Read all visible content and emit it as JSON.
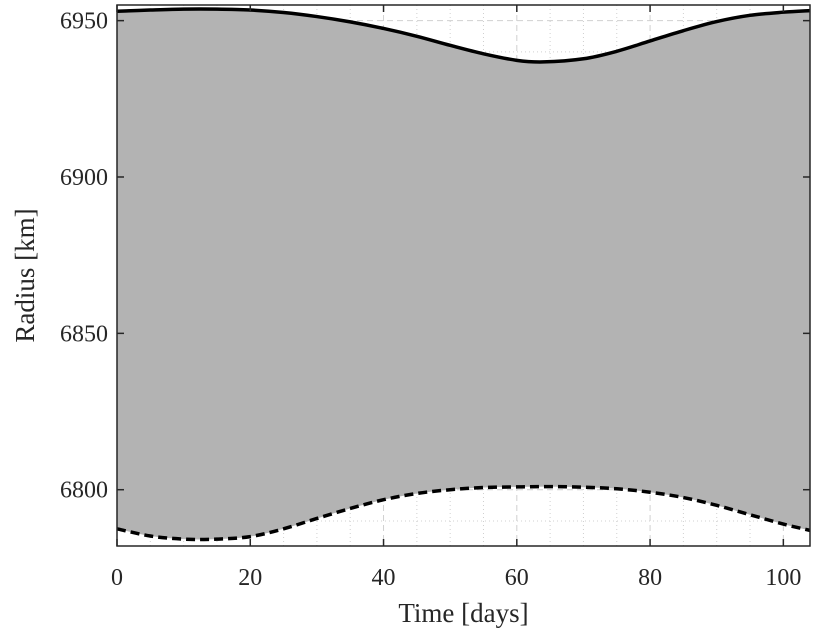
{
  "chart_data": {
    "type": "area",
    "title": "",
    "xlabel": "Time [days]",
    "ylabel": "Radius [km]",
    "xlim": [
      0,
      104
    ],
    "ylim": [
      6782,
      6955
    ],
    "xticks": [
      0,
      20,
      40,
      60,
      80,
      100
    ],
    "yticks": [
      6800,
      6850,
      6900,
      6950
    ],
    "grid": "dotted major and minor",
    "fill_color": "#b3b3b3",
    "series": [
      {
        "line_style": "solid",
        "color": "#000000",
        "x": [
          0,
          5,
          10,
          15,
          20,
          25,
          30,
          35,
          40,
          45,
          50,
          55,
          60,
          64,
          70,
          75,
          80,
          85,
          90,
          95,
          100,
          104
        ],
        "y": [
          6953,
          6953.4,
          6953.7,
          6953.7,
          6953.4,
          6952.6,
          6951.3,
          6949.6,
          6947.5,
          6945.0,
          6942.1,
          6939.4,
          6937.3,
          6936.8,
          6937.8,
          6940.2,
          6943.5,
          6946.8,
          6949.7,
          6951.7,
          6952.7,
          6953.2
        ]
      },
      {
        "line_style": "dashed",
        "color": "#000000",
        "x": [
          0,
          5,
          10,
          15,
          20,
          25,
          30,
          35,
          40,
          45,
          50,
          55,
          60,
          65,
          70,
          75,
          80,
          85,
          90,
          95,
          100,
          104
        ],
        "y": [
          6787.5,
          6785.2,
          6784.2,
          6784.2,
          6785.0,
          6787.5,
          6790.8,
          6794.0,
          6796.8,
          6798.8,
          6800.0,
          6800.7,
          6800.9,
          6801.0,
          6800.8,
          6800.3,
          6799.2,
          6797.5,
          6795.0,
          6792.0,
          6789.0,
          6787.0
        ]
      }
    ]
  }
}
